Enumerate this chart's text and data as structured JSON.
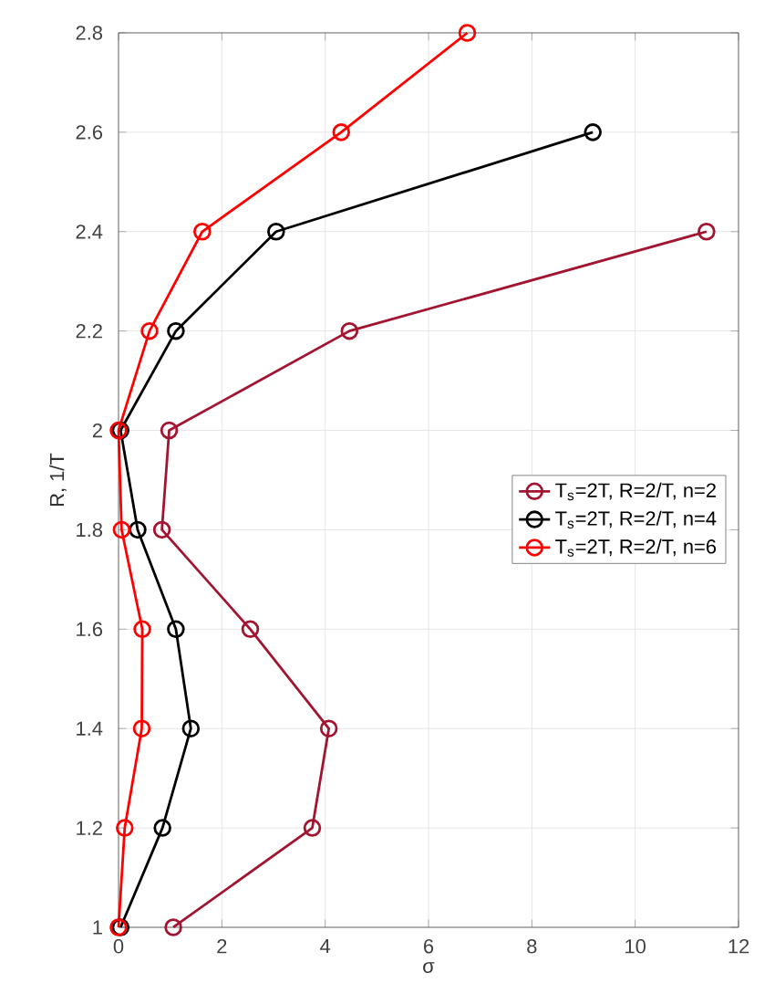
{
  "chart_data": {
    "type": "line",
    "xlabel": "σ",
    "ylabel": "R, 1/T",
    "xlim": [
      0,
      12
    ],
    "ylim": [
      1,
      2.8
    ],
    "xticks": [
      0,
      2,
      4,
      6,
      8,
      10,
      12
    ],
    "yticks": [
      1,
      1.2,
      1.4,
      1.6,
      1.8,
      2,
      2.2,
      2.4,
      2.6,
      2.8
    ],
    "grid": true,
    "legend": "right",
    "marker": "circle",
    "line_style": "solid",
    "series": [
      {
        "name": "T$_{s}$=2T, R=2/T, n=2",
        "color": "#a2142f",
        "x": [
          1.06,
          3.75,
          4.07,
          2.55,
          0.84,
          0.98,
          4.47,
          11.38
        ],
        "values": [
          1,
          1.2,
          1.4,
          1.6,
          1.8,
          2,
          2.2,
          2.4
        ]
      },
      {
        "name": "T$_{s}$=2T, R=2/T, n=4",
        "color": "#000000",
        "x": [
          0.04,
          0.85,
          1.4,
          1.11,
          0.37,
          0.04,
          1.11,
          3.05,
          9.18
        ],
        "values": [
          1,
          1.2,
          1.4,
          1.6,
          1.8,
          2,
          2.2,
          2.4,
          2.6
        ]
      },
      {
        "name": "T$_{s}$=2T, R=2/T, n=6",
        "color": "#ff0000",
        "x": [
          0,
          0.12,
          0.45,
          0.46,
          0.06,
          0,
          0.6,
          1.62,
          4.31,
          6.75
        ],
        "values": [
          1,
          1.2,
          1.4,
          1.6,
          1.8,
          2,
          2.2,
          2.4,
          2.6,
          2.8
        ]
      }
    ]
  }
}
